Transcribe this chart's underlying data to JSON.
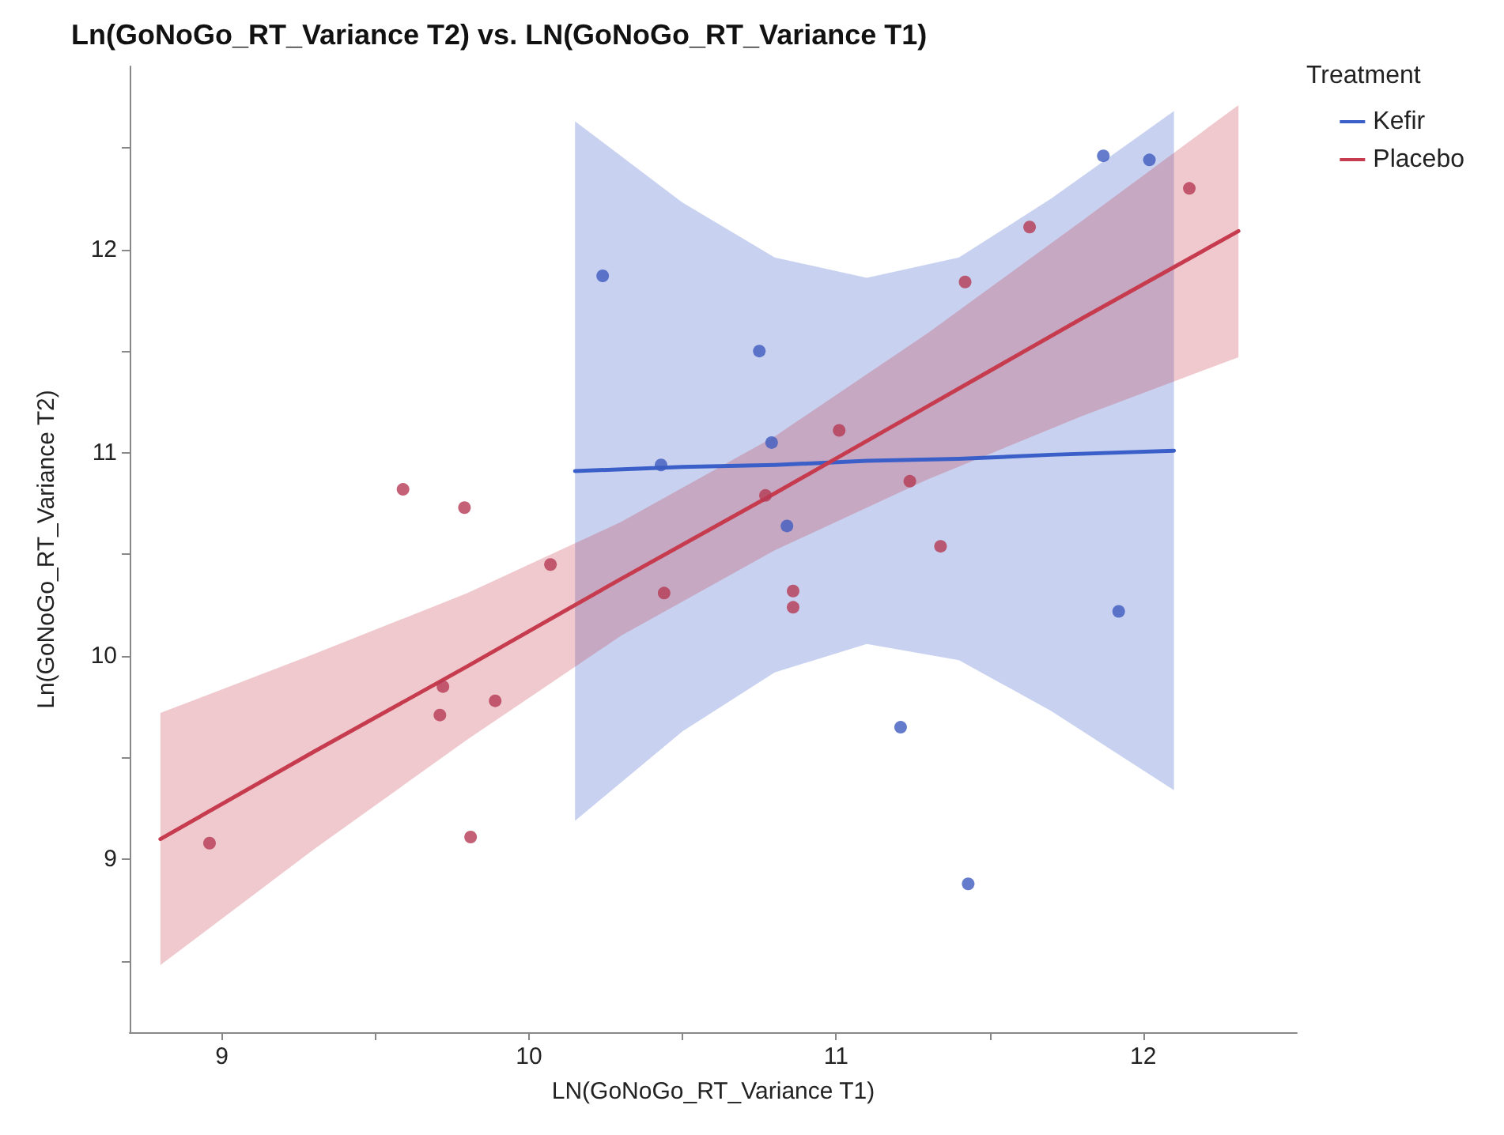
{
  "chart_data": {
    "type": "scatter",
    "title": "Ln(GoNoGo_RT_Variance T2) vs. LN(GoNoGo_RT_Variance T1)",
    "xlabel": "LN(GoNoGo_RT_Variance T1)",
    "ylabel": "Ln(GoNoGo_RT_Variance T2)",
    "legend_title": "Treatment",
    "legend": "right",
    "grid": false,
    "marker": "circle",
    "line_style": "solid",
    "xlim": [
      8.7,
      12.5
    ],
    "xticks": [
      9,
      {
        "value": 9.5,
        "label": null
      },
      10,
      {
        "value": 10.5,
        "label": null
      },
      11,
      {
        "value": 11.5,
        "label": null
      },
      12
    ],
    "ylim": [
      8.15,
      12.9
    ],
    "yticks": [
      {
        "value": 8.5,
        "label": null
      },
      9,
      {
        "value": 9.5,
        "label": null
      },
      10,
      {
        "value": 10.5,
        "label": null
      },
      11,
      {
        "value": 11.5,
        "label": null
      },
      12,
      {
        "value": 12.5,
        "label": null
      }
    ],
    "series": [
      {
        "type": "line",
        "marker": "none",
        "name": "Kefir",
        "color": "#3b5fc9",
        "x": [
          10.15,
          10.5,
          10.8,
          11.1,
          11.4,
          11.7,
          12.1
        ],
        "values": [
          10.91,
          10.93,
          10.94,
          10.96,
          10.97,
          10.99,
          11.01
        ],
        "lower": [
          9.19,
          9.63,
          9.92,
          10.06,
          9.98,
          9.73,
          9.34
        ],
        "upper": [
          12.63,
          12.23,
          11.96,
          11.86,
          11.96,
          12.25,
          12.68
        ]
      },
      {
        "type": "line",
        "marker": "none",
        "name": "Placebo",
        "color": "#c63c4e",
        "x": [
          8.8,
          9.3,
          9.8,
          10.3,
          10.8,
          11.3,
          11.8,
          12.31
        ],
        "values": [
          9.1,
          9.53,
          9.95,
          10.38,
          10.8,
          11.23,
          11.66,
          12.09
        ],
        "lower": [
          8.48,
          9.05,
          9.59,
          10.1,
          10.52,
          10.87,
          11.18,
          11.47
        ],
        "upper": [
          9.72,
          10.01,
          10.31,
          10.66,
          11.08,
          11.59,
          12.14,
          12.71
        ]
      },
      {
        "color": "#3f5bbf",
        "x": [
          10.24,
          10.43,
          10.75,
          10.79,
          10.84,
          11.87,
          12.02,
          11.21,
          11.43,
          11.92
        ],
        "values": [
          11.87,
          10.94,
          11.5,
          11.05,
          10.64,
          12.46,
          12.44,
          9.65,
          8.88,
          10.22
        ]
      },
      {
        "color": "#b53a54",
        "x": [
          8.96,
          9.59,
          9.79,
          10.07,
          10.44,
          9.72,
          9.71,
          9.89,
          9.81,
          11.01,
          10.77,
          11.24,
          11.34,
          11.42,
          11.63,
          12.15,
          10.86,
          10.86
        ],
        "values": [
          9.08,
          10.82,
          10.73,
          10.45,
          10.31,
          9.85,
          9.71,
          9.78,
          9.11,
          11.11,
          10.79,
          10.86,
          10.54,
          11.84,
          12.11,
          12.3,
          10.32,
          10.24
        ]
      }
    ]
  }
}
